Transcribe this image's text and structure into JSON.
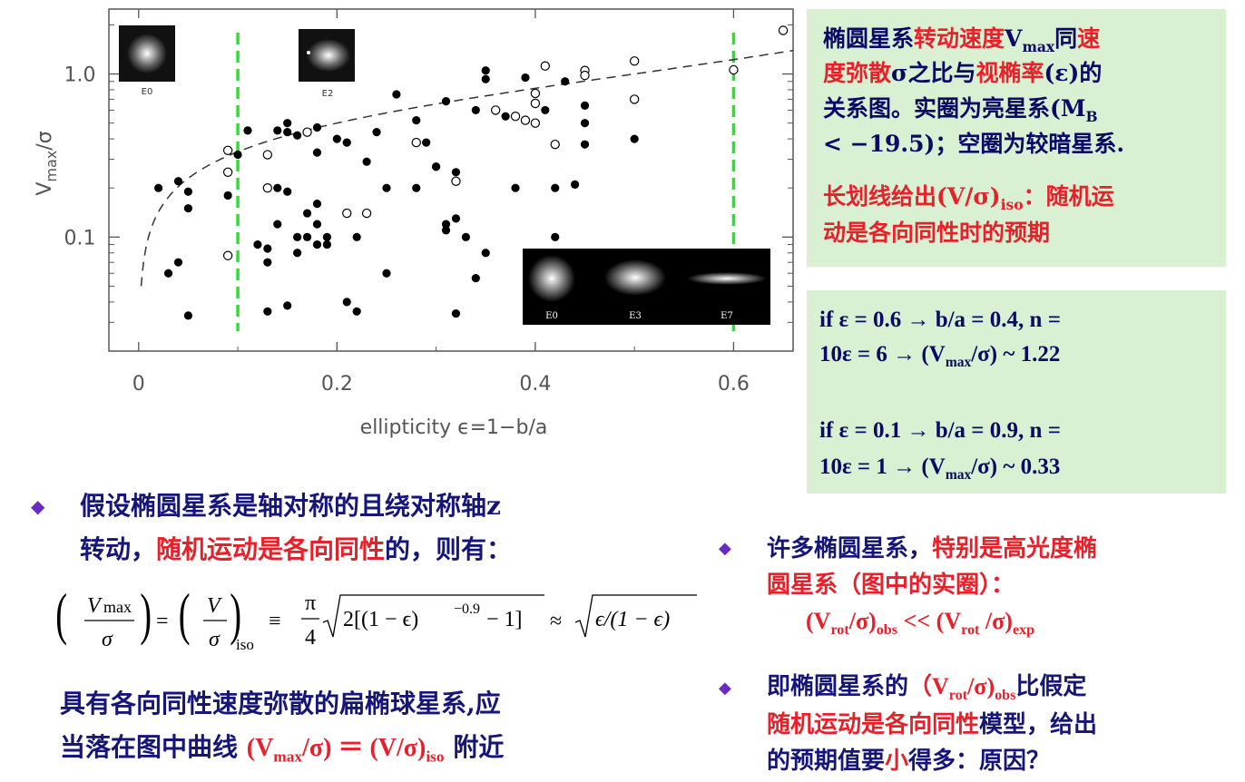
{
  "chart_data": {
    "type": "scatter",
    "xlabel": "ellipticity  ϵ=1−b/a",
    "ylabel": "V_max/σ",
    "xlim": [
      -0.03,
      0.66
    ],
    "ylim": [
      0.02,
      2.5
    ],
    "yscale": "log",
    "xticks": [
      0,
      0.2,
      0.4,
      0.6
    ],
    "xtick_labels": [
      "0",
      "0.2",
      "0.4",
      "0.6"
    ],
    "yticks": [
      0.1,
      1.0
    ],
    "ytick_labels": [
      "0.1",
      "1.0"
    ],
    "vlines": [
      0.1,
      0.6
    ],
    "inset_labels_top": [
      "E0",
      "E2"
    ],
    "inset_labels_bottom": [
      "E0",
      "E3",
      "E7"
    ],
    "series": [
      {
        "marker": "filled",
        "points": [
          [
            0.02,
            0.2
          ],
          [
            0.03,
            0.06
          ],
          [
            0.04,
            0.22
          ],
          [
            0.04,
            0.07
          ],
          [
            0.05,
            0.19
          ],
          [
            0.05,
            0.15
          ],
          [
            0.05,
            0.033
          ],
          [
            0.09,
            0.18
          ],
          [
            0.1,
            0.32
          ],
          [
            0.11,
            0.45
          ],
          [
            0.12,
            0.09
          ],
          [
            0.13,
            0.085
          ],
          [
            0.13,
            0.07
          ],
          [
            0.13,
            0.035
          ],
          [
            0.14,
            0.45
          ],
          [
            0.14,
            0.2
          ],
          [
            0.14,
            0.12
          ],
          [
            0.15,
            0.5
          ],
          [
            0.15,
            0.44
          ],
          [
            0.15,
            0.19
          ],
          [
            0.15,
            0.038
          ],
          [
            0.16,
            0.08
          ],
          [
            0.16,
            0.42
          ],
          [
            0.16,
            0.1
          ],
          [
            0.17,
            0.14
          ],
          [
            0.17,
            0.1
          ],
          [
            0.18,
            0.47
          ],
          [
            0.18,
            0.33
          ],
          [
            0.18,
            0.16
          ],
          [
            0.18,
            0.12
          ],
          [
            0.18,
            0.09
          ],
          [
            0.19,
            0.1
          ],
          [
            0.19,
            0.09
          ],
          [
            0.2,
            0.4
          ],
          [
            0.21,
            0.38
          ],
          [
            0.21,
            0.04
          ],
          [
            0.22,
            0.1
          ],
          [
            0.22,
            0.035
          ],
          [
            0.23,
            0.29
          ],
          [
            0.24,
            0.44
          ],
          [
            0.25,
            0.2
          ],
          [
            0.25,
            0.06
          ],
          [
            0.26,
            0.75
          ],
          [
            0.28,
            0.52
          ],
          [
            0.28,
            0.2
          ],
          [
            0.29,
            0.38
          ],
          [
            0.3,
            0.27
          ],
          [
            0.3,
            0.27
          ],
          [
            0.31,
            0.68
          ],
          [
            0.31,
            0.12
          ],
          [
            0.31,
            0.11
          ],
          [
            0.32,
            0.25
          ],
          [
            0.32,
            0.13
          ],
          [
            0.32,
            0.034
          ],
          [
            0.33,
            0.1
          ],
          [
            0.34,
            0.6
          ],
          [
            0.34,
            0.056
          ],
          [
            0.35,
            1.05
          ],
          [
            0.35,
            0.93
          ],
          [
            0.35,
            0.08
          ],
          [
            0.36,
            0.6
          ],
          [
            0.37,
            0.55
          ],
          [
            0.38,
            0.2
          ],
          [
            0.39,
            0.95
          ],
          [
            0.41,
            0.6
          ],
          [
            0.42,
            0.2
          ],
          [
            0.42,
            0.1
          ],
          [
            0.43,
            0.9
          ],
          [
            0.44,
            0.21
          ],
          [
            0.45,
            0.64
          ],
          [
            0.45,
            0.5
          ],
          [
            0.45,
            0.37
          ],
          [
            0.5,
            0.4
          ]
        ]
      },
      {
        "marker": "open",
        "points": [
          [
            0.09,
            0.34
          ],
          [
            0.09,
            0.25
          ],
          [
            0.09,
            0.077
          ],
          [
            0.13,
            0.32
          ],
          [
            0.13,
            0.2
          ],
          [
            0.17,
            0.44
          ],
          [
            0.21,
            0.14
          ],
          [
            0.23,
            0.14
          ],
          [
            0.28,
            0.38
          ],
          [
            0.32,
            0.22
          ],
          [
            0.36,
            0.6
          ],
          [
            0.38,
            0.55
          ],
          [
            0.39,
            0.52
          ],
          [
            0.4,
            0.76
          ],
          [
            0.4,
            0.66
          ],
          [
            0.4,
            0.5
          ],
          [
            0.41,
            1.12
          ],
          [
            0.42,
            0.37
          ],
          [
            0.45,
            1.05
          ],
          [
            0.45,
            0.98
          ],
          [
            0.5,
            1.2
          ],
          [
            0.5,
            0.7
          ],
          [
            0.6,
            1.06
          ],
          [
            0.65,
            1.85
          ]
        ]
      }
    ],
    "curve": "(V/σ)_iso = sqrt(ϵ/(1−ϵ))"
  },
  "right_box1": {
    "l1": [
      "椭圆星系",
      "转动速度",
      "V",
      "max",
      "同",
      "速"
    ],
    "l2": [
      "度弥散",
      "σ之比与",
      "视椭率",
      "(ε)的"
    ],
    "l3": [
      "关系图。实圈为亮星系(M",
      "B"
    ],
    "l4": "< −19.5)；空圈为较暗星系.",
    "l5": [
      "长划线给出(V/σ)",
      "iso",
      "：随机运"
    ],
    "l6": "动是各向同性时的预期"
  },
  "right_box2": {
    "a1": "if ε = 0.6 → b/a = 0.4,  n =",
    "a2": [
      "10ε = 6 → (V",
      "max",
      "/σ) ~ 1.22"
    ],
    "b1": "if ε = 0.1 → b/a = 0.9,  n =",
    "b2": [
      "10ε = 1 → (V",
      "max",
      "/σ) ~ 0.33"
    ]
  },
  "left_bullet": {
    "bullet": "◆",
    "l1": "假设椭圆星系是轴对称的且绕对称轴z",
    "l2_a": "转动，",
    "l2_b": "随机运动是各向同性",
    "l2_c": "的，则有："
  },
  "formula": {
    "lhs_num": "V",
    "lhs_num_sub": "max",
    "lhs_den": "σ",
    "mid_num": "V",
    "mid_den": "σ",
    "mid_sub": "iso",
    "equiv": "≡",
    "pi": "π",
    "four": "4",
    "sqrt1": "2[(1 − ϵ)",
    "sqrt1_exp": "−0.9",
    "sqrt1_end": " − 1]",
    "approx": "≈",
    "sqrt2": "ϵ/(1 − ϵ)"
  },
  "bottom_left": {
    "l1": "具有各向同性速度弥散的扁椭球星系,应",
    "l2_a": "当落在图中曲线 ",
    "l2_b": "(V",
    "l2_b_sub": "max",
    "l2_c": "/σ) ＝ (V/σ)",
    "l2_c_sub": "iso",
    "l2_d": " 附近"
  },
  "right_bullets": {
    "b1_mark": "◆",
    "b1_l1_a": "许多椭圆星系，",
    "b1_l1_b": "特别是高光度椭",
    "b1_l2": "圆星系（图中的实圈）：",
    "b1_l3_a": "(V",
    "b1_l3_a_sub": "rot",
    "b1_l3_b": "/σ)",
    "b1_l3_b_sub": "obs",
    "b1_l3_c": " <<  (V",
    "b1_l3_c_sub": "rot",
    "b1_l3_d": " /σ)",
    "b1_l3_d_sub": "exp",
    "b2_mark": "◆",
    "b2_l1_a": "即椭圆星系的",
    "b2_l1_b": "（V",
    "b2_l1_b_sub": "rot",
    "b2_l1_c": "/σ)",
    "b2_l1_c_sub": "obs",
    "b2_l1_d": "比假定",
    "b2_l2_a": "随机运动是各向同性",
    "b2_l2_b": "模型，给出",
    "b2_l3_a": "的预期值要",
    "b2_l3_b": "小",
    "b2_l3_c": "得多：原因？"
  },
  "colors": {
    "navy": "#0a0a66",
    "red": "#e8202a",
    "green_box": "#d9f0d3",
    "green_line": "#33dd33",
    "bullet": "#6a2bc4"
  }
}
